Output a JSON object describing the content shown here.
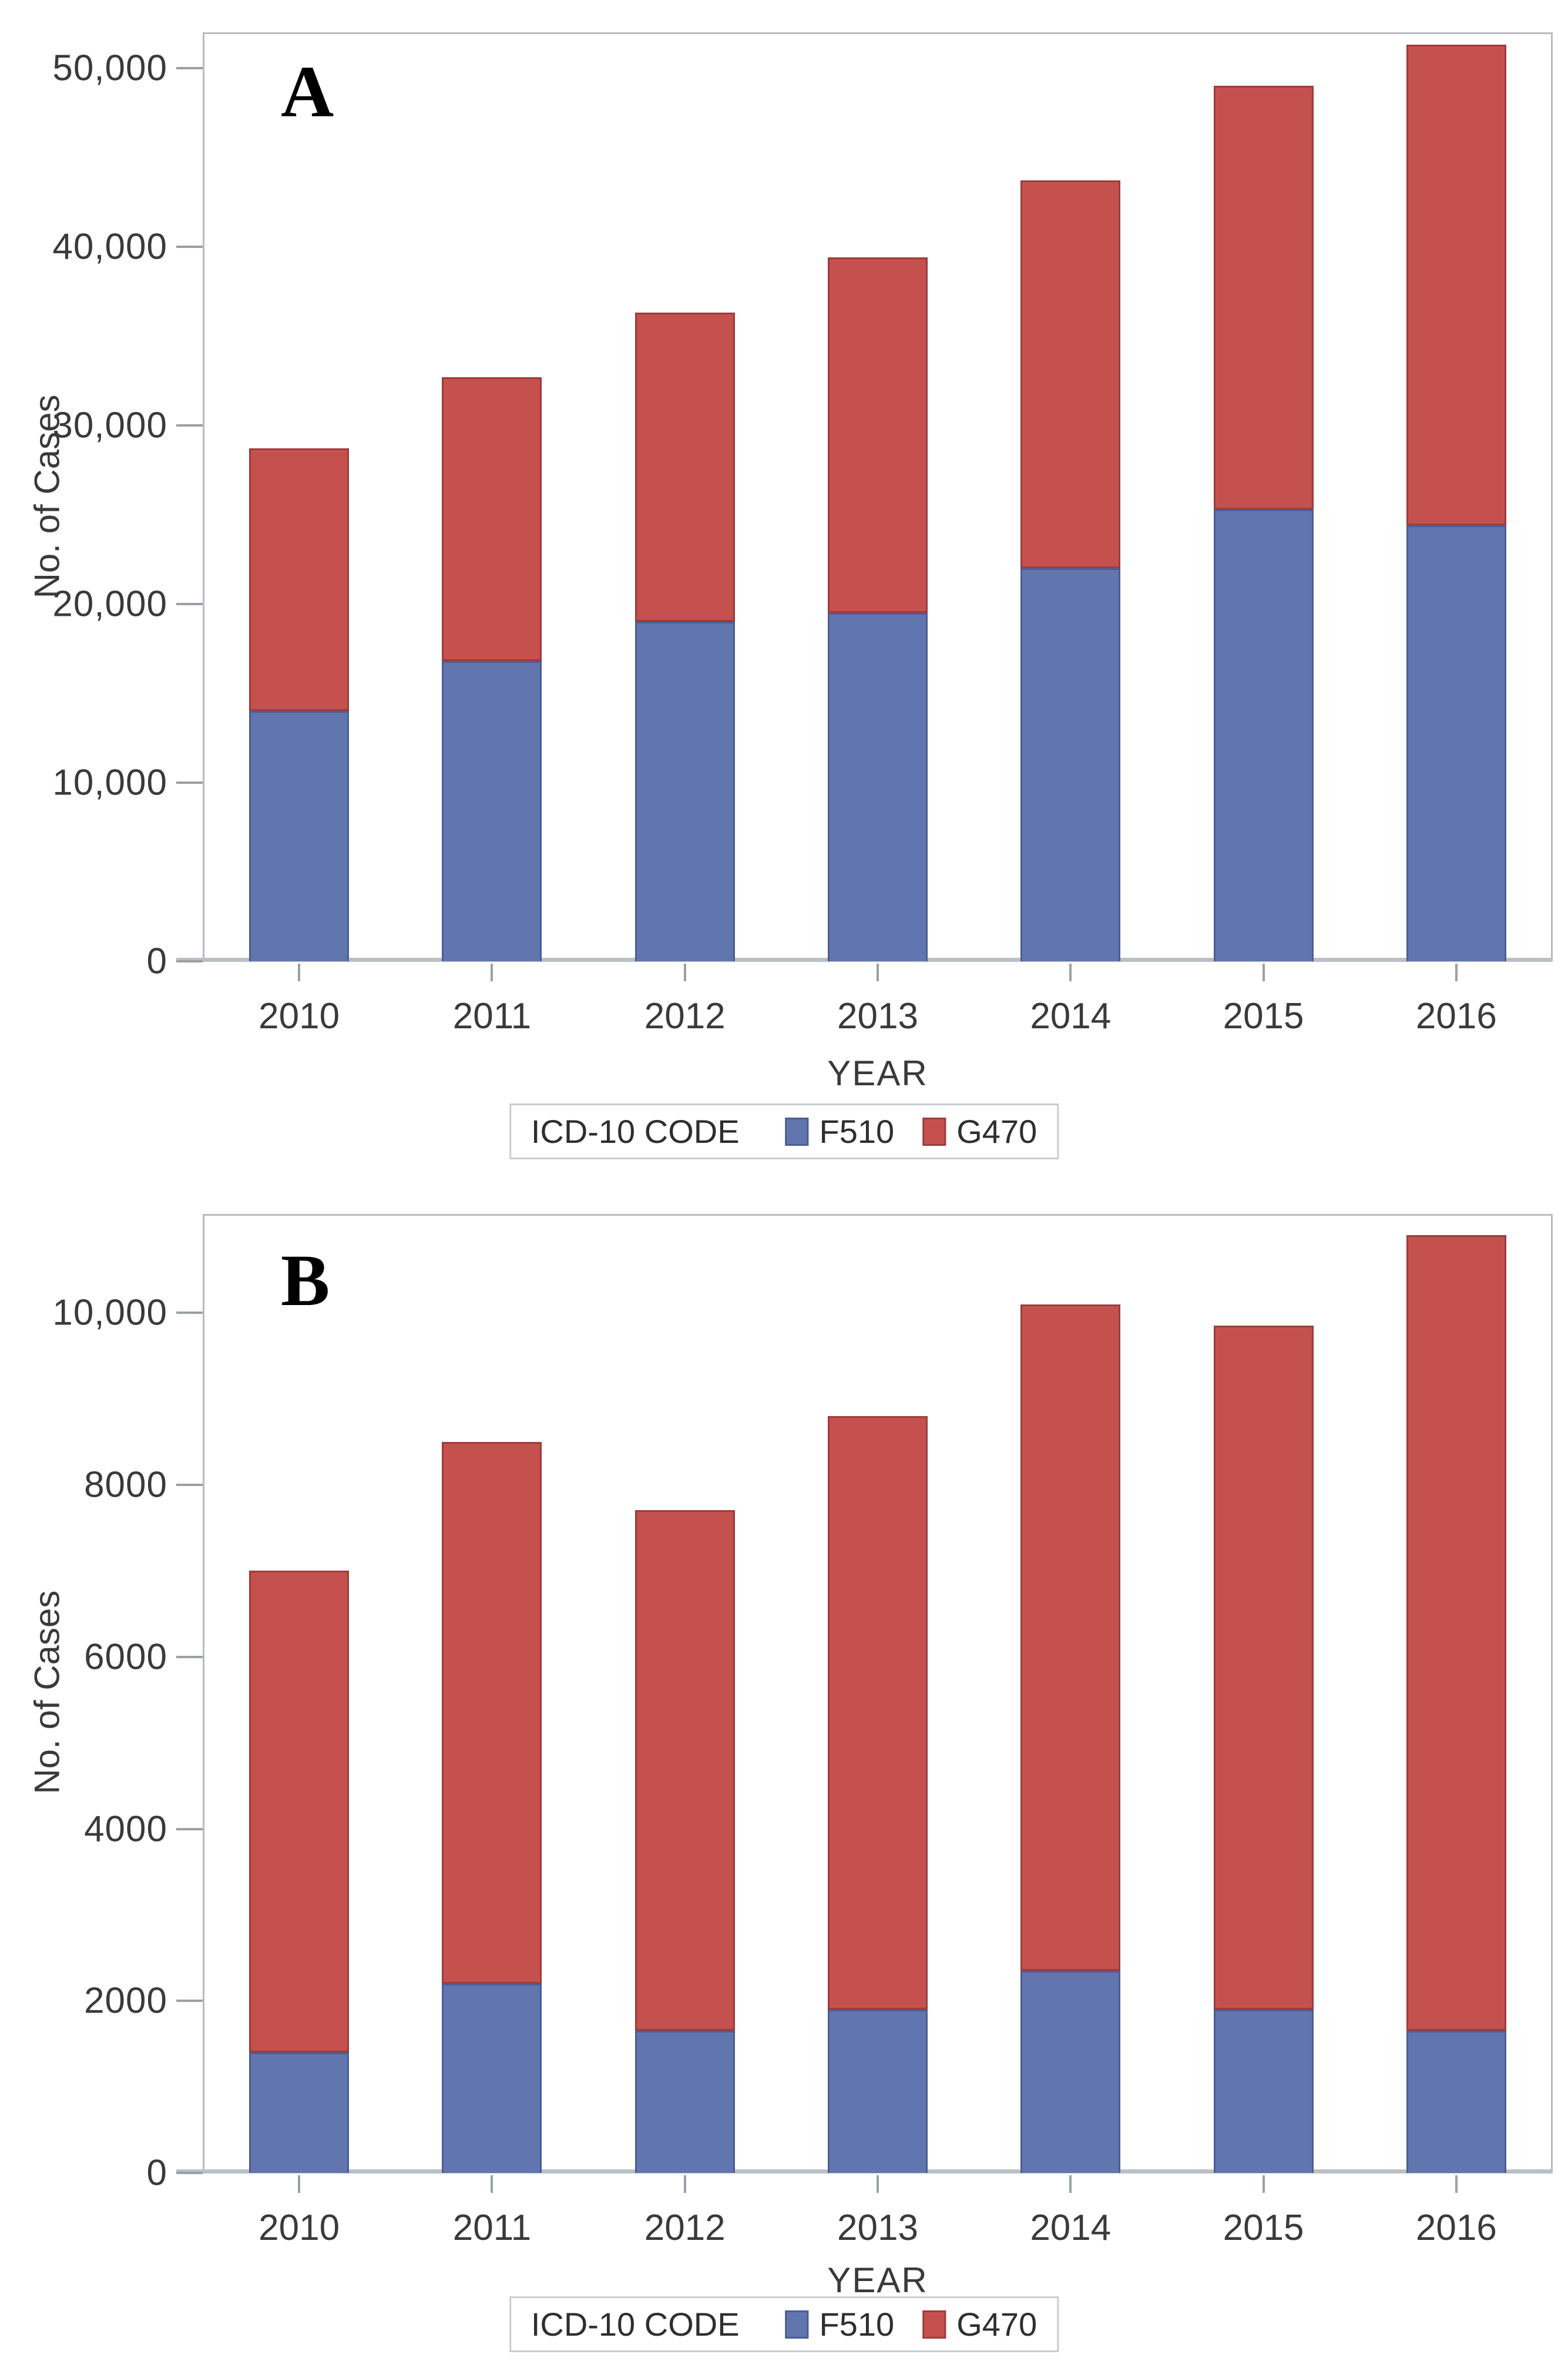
{
  "figure": {
    "background": "#ffffff",
    "frame_color": "#b6bcc2",
    "axis_color": "#9aa0a6",
    "text_color": "#3a3a3a"
  },
  "chart_data": [
    {
      "type": "bar",
      "stacked": true,
      "panel": "A",
      "categories": [
        "2010",
        "2011",
        "2012",
        "2013",
        "2014",
        "2015",
        "2016"
      ],
      "series": [
        {
          "name": "F510",
          "color": "#6176AE",
          "border": "#4C5D96",
          "values": [
            14000,
            16800,
            19000,
            19500,
            22000,
            25300,
            24400
          ]
        },
        {
          "name": "G470",
          "color": "#C5514E",
          "border": "#9D3C3B",
          "values": [
            14700,
            15900,
            17300,
            19900,
            21700,
            23700,
            26900
          ]
        }
      ],
      "totals": [
        28700,
        32700,
        36300,
        39400,
        43700,
        49000,
        51300
      ],
      "xlabel": "YEAR",
      "ylabel": "No. of Cases",
      "ylim": [
        0,
        52000
      ],
      "yticks": [
        {
          "value": 0,
          "label": "0"
        },
        {
          "value": 10000,
          "label": "10,000"
        },
        {
          "value": 20000,
          "label": "20,000"
        },
        {
          "value": 30000,
          "label": "30,000"
        },
        {
          "value": 40000,
          "label": "40,000"
        },
        {
          "value": 50000,
          "label": "50,000"
        }
      ],
      "legend_title": "ICD-10 CODE",
      "legend_position": "bottom",
      "grid": false
    },
    {
      "type": "bar",
      "stacked": true,
      "panel": "B",
      "categories": [
        "2010",
        "2011",
        "2012",
        "2013",
        "2014",
        "2015",
        "2016"
      ],
      "series": [
        {
          "name": "F510",
          "color": "#6176AE",
          "border": "#4C5D96",
          "values": [
            1400,
            2200,
            1650,
            1900,
            2350,
            1900,
            1650
          ]
        },
        {
          "name": "G470",
          "color": "#C5514E",
          "border": "#9D3C3B",
          "values": [
            5600,
            6300,
            6050,
            6900,
            7750,
            7950,
            9250
          ]
        }
      ],
      "totals": [
        7000,
        8500,
        7700,
        8800,
        10100,
        9850,
        10900
      ],
      "xlabel": "YEAR",
      "ylabel": "No. of Cases",
      "ylim": [
        0,
        11150
      ],
      "yticks": [
        {
          "value": 0,
          "label": "0"
        },
        {
          "value": 2000,
          "label": "2000"
        },
        {
          "value": 4000,
          "label": "4000"
        },
        {
          "value": 6000,
          "label": "6000"
        },
        {
          "value": 8000,
          "label": "8000"
        },
        {
          "value": 10000,
          "label": "10,000"
        }
      ],
      "legend_title": "ICD-10 CODE",
      "legend_position": "bottom",
      "grid": false
    }
  ]
}
